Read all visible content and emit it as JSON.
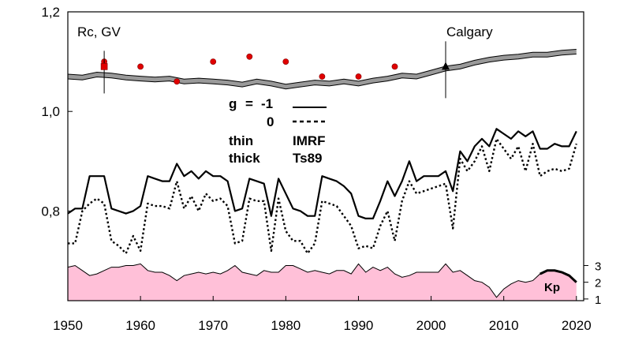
{
  "chart_data": {
    "type": "line",
    "title": "",
    "xlabel": "",
    "ylabel": "Rc, GV",
    "station": "Calgary",
    "xlim": [
      1950,
      2021
    ],
    "ylim": [
      0.62,
      1.2
    ],
    "x_ticks": [
      "1950",
      "1960",
      "1970",
      "1980",
      "1990",
      "2000",
      "2010",
      "2020"
    ],
    "y_ticks": [
      {
        "value": 0.8,
        "label": "0,8"
      },
      {
        "value": 1.0,
        "label": "1,0"
      },
      {
        "value": 1.2,
        "label": "1,2"
      }
    ],
    "kp_axis": {
      "label": "Kp",
      "ylim": [
        0.9,
        3.4
      ],
      "ticks": [
        "1",
        "2",
        "3"
      ]
    },
    "legend": {
      "g_label": "g",
      "eq": "=",
      "g_values": [
        "-1",
        "0"
      ],
      "thin_label": "thin",
      "thick_label": "thick",
      "model_1": "IMRF",
      "model_2": "Ts89"
    },
    "series": [
      {
        "style": "thick-solid",
        "x": [
          1950,
          1951,
          1952,
          1953,
          1954,
          1955,
          1956,
          1957,
          1958,
          1959,
          1960,
          1961,
          1962,
          1963,
          1964,
          1965,
          1966,
          1967,
          1968,
          1969,
          1970,
          1971,
          1972,
          1973,
          1974,
          1975,
          1976,
          1977,
          1978,
          1979,
          1980,
          1981,
          1982,
          1983,
          1984,
          1985,
          1986,
          1987,
          1988,
          1989,
          1990,
          1991,
          1992,
          1993,
          1994,
          1995,
          1996,
          1997,
          1998,
          1999,
          2000,
          2001,
          2002,
          2003,
          2004,
          2005,
          2006,
          2007,
          2008,
          2009,
          2010,
          2011,
          2012,
          2013,
          2014,
          2015,
          2016,
          2017,
          2018,
          2019,
          2020
        ],
        "y": [
          0.795,
          0.805,
          0.805,
          0.87,
          0.87,
          0.87,
          0.805,
          0.8,
          0.795,
          0.8,
          0.81,
          0.87,
          0.865,
          0.86,
          0.86,
          0.895,
          0.87,
          0.88,
          0.865,
          0.88,
          0.87,
          0.87,
          0.86,
          0.8,
          0.805,
          0.865,
          0.86,
          0.855,
          0.79,
          0.865,
          0.835,
          0.805,
          0.8,
          0.79,
          0.79,
          0.87,
          0.865,
          0.86,
          0.85,
          0.835,
          0.79,
          0.785,
          0.785,
          0.82,
          0.86,
          0.83,
          0.86,
          0.9,
          0.86,
          0.87,
          0.87,
          0.87,
          0.88,
          0.84,
          0.92,
          0.9,
          0.93,
          0.945,
          0.93,
          0.965,
          0.955,
          0.945,
          0.96,
          0.95,
          0.96,
          0.925,
          0.925,
          0.935,
          0.93,
          0.93,
          0.96
        ]
      },
      {
        "style": "thick-dotted",
        "x": [
          1950,
          1951,
          1952,
          1953,
          1954,
          1955,
          1956,
          1957,
          1958,
          1959,
          1960,
          1961,
          1962,
          1963,
          1964,
          1965,
          1966,
          1967,
          1968,
          1969,
          1970,
          1971,
          1972,
          1973,
          1974,
          1975,
          1976,
          1977,
          1978,
          1979,
          1980,
          1981,
          1982,
          1983,
          1984,
          1985,
          1986,
          1987,
          1988,
          1989,
          1990,
          1991,
          1992,
          1993,
          1994,
          1995,
          1996,
          1997,
          1998,
          1999,
          2000,
          2001,
          2002,
          2003,
          2004,
          2005,
          2006,
          2007,
          2008,
          2009,
          2010,
          2011,
          2012,
          2013,
          2014,
          2015,
          2016,
          2017,
          2018,
          2019,
          2020
        ],
        "y": [
          0.735,
          0.735,
          0.8,
          0.815,
          0.825,
          0.815,
          0.74,
          0.73,
          0.715,
          0.75,
          0.72,
          0.815,
          0.81,
          0.81,
          0.805,
          0.86,
          0.805,
          0.83,
          0.8,
          0.835,
          0.82,
          0.825,
          0.81,
          0.735,
          0.74,
          0.825,
          0.82,
          0.82,
          0.72,
          0.825,
          0.76,
          0.74,
          0.74,
          0.715,
          0.735,
          0.82,
          0.815,
          0.81,
          0.79,
          0.77,
          0.725,
          0.73,
          0.725,
          0.77,
          0.8,
          0.74,
          0.82,
          0.86,
          0.835,
          0.84,
          0.845,
          0.85,
          0.855,
          0.765,
          0.905,
          0.88,
          0.9,
          0.93,
          0.88,
          0.945,
          0.925,
          0.905,
          0.93,
          0.88,
          0.935,
          0.87,
          0.88,
          0.885,
          0.88,
          0.885,
          0.935
        ]
      },
      {
        "style": "thin-band",
        "x": [
          1950,
          1952,
          1954,
          1956,
          1958,
          1960,
          1962,
          1964,
          1966,
          1968,
          1970,
          1972,
          1974,
          1976,
          1978,
          1980,
          1982,
          1984,
          1986,
          1988,
          1990,
          1992,
          1994,
          1996,
          1998,
          2000,
          2002,
          2004,
          2006,
          2008,
          2010,
          2012,
          2014,
          2016,
          2018,
          2020
        ],
        "y": [
          1.07,
          1.068,
          1.074,
          1.072,
          1.068,
          1.066,
          1.064,
          1.066,
          1.06,
          1.062,
          1.06,
          1.058,
          1.054,
          1.06,
          1.056,
          1.05,
          1.054,
          1.058,
          1.056,
          1.06,
          1.056,
          1.062,
          1.066,
          1.072,
          1.07,
          1.078,
          1.086,
          1.09,
          1.098,
          1.104,
          1.108,
          1.11,
          1.114,
          1.114,
          1.118,
          1.12
        ]
      }
    ],
    "observations": {
      "x": [
        1955,
        1960,
        1965,
        1970,
        1975,
        1980,
        1985,
        1990,
        1995
      ],
      "y": [
        1.1,
        1.09,
        1.06,
        1.1,
        1.11,
        1.1,
        1.07,
        1.07,
        1.09
      ]
    },
    "calgary_marker": {
      "x": 2002,
      "y": 1.09
    },
    "rc_marker": {
      "x": 1955,
      "y": 1.09
    },
    "kp": {
      "x": [
        1950,
        1951,
        1952,
        1953,
        1954,
        1955,
        1956,
        1957,
        1958,
        1959,
        1960,
        1961,
        1962,
        1963,
        1964,
        1965,
        1966,
        1967,
        1968,
        1969,
        1970,
        1971,
        1972,
        1973,
        1974,
        1975,
        1976,
        1977,
        1978,
        1979,
        1980,
        1981,
        1982,
        1983,
        1984,
        1985,
        1986,
        1987,
        1988,
        1989,
        1990,
        1991,
        1992,
        1993,
        1994,
        1995,
        1996,
        1997,
        1998,
        1999,
        2000,
        2001,
        2002,
        2003,
        2004,
        2005,
        2006,
        2007,
        2008,
        2009,
        2010,
        2011,
        2012,
        2013,
        2014,
        2015,
        2016,
        2017,
        2018,
        2019,
        2020
      ],
      "y": [
        2.9,
        3.0,
        2.7,
        2.4,
        2.5,
        2.7,
        2.9,
        2.9,
        3.0,
        3.0,
        3.1,
        2.7,
        2.6,
        2.6,
        2.4,
        2.1,
        2.4,
        2.5,
        2.6,
        2.5,
        2.6,
        2.5,
        2.7,
        3.0,
        2.6,
        2.5,
        2.4,
        2.7,
        2.6,
        2.6,
        3.0,
        3.0,
        2.8,
        2.6,
        2.7,
        2.6,
        2.5,
        2.7,
        2.7,
        2.5,
        3.1,
        2.6,
        2.9,
        2.7,
        2.9,
        2.5,
        2.3,
        2.4,
        2.6,
        2.6,
        2.6,
        2.6,
        3.1,
        2.6,
        2.7,
        2.4,
        2.1,
        2.0,
        1.7,
        1.1,
        1.6,
        1.9,
        2.1,
        2.0,
        2.1,
        2.5,
        2.7,
        2.7,
        2.6,
        2.4,
        2.0
      ]
    }
  }
}
